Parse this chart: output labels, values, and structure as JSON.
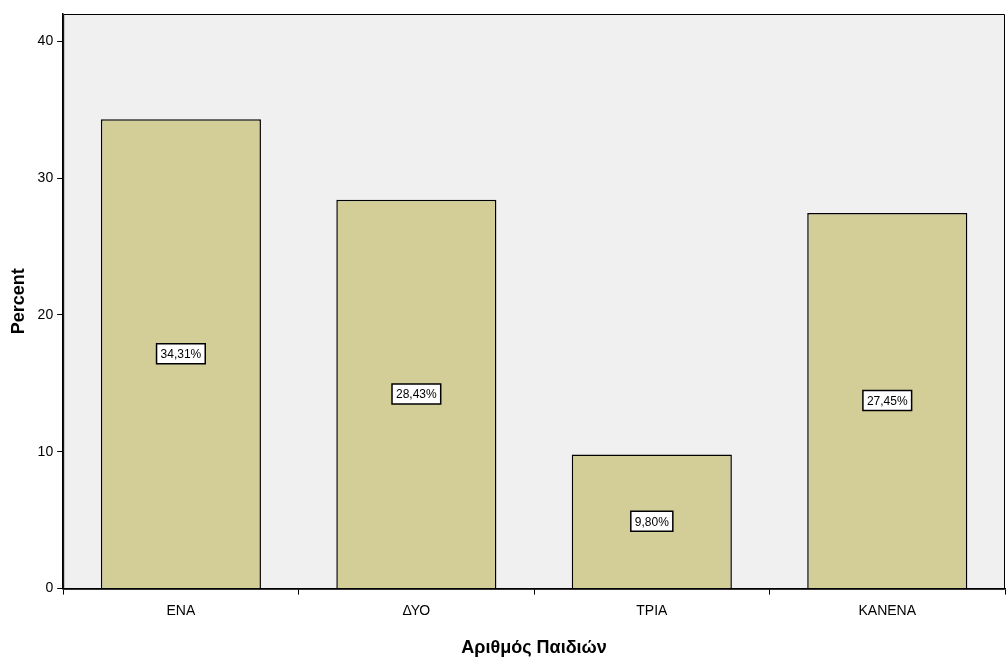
{
  "chart_data": {
    "type": "bar",
    "xlabel": "Αριθμός Παιδιών",
    "ylabel": "Percent",
    "categories": [
      "ΕΝΑ",
      "ΔΥΟ",
      "ΤΡΙΑ",
      "ΚΑΝΕΝΑ"
    ],
    "values": [
      34.31,
      28.43,
      9.8,
      27.45
    ],
    "value_labels": [
      "34,31%",
      "28,43%",
      "9,80%",
      "27,45%"
    ],
    "color": "#d3ce97",
    "ylim": [
      0,
      42
    ],
    "yticks": [
      0,
      10,
      20,
      30,
      40
    ],
    "grid": false,
    "legend": false
  }
}
